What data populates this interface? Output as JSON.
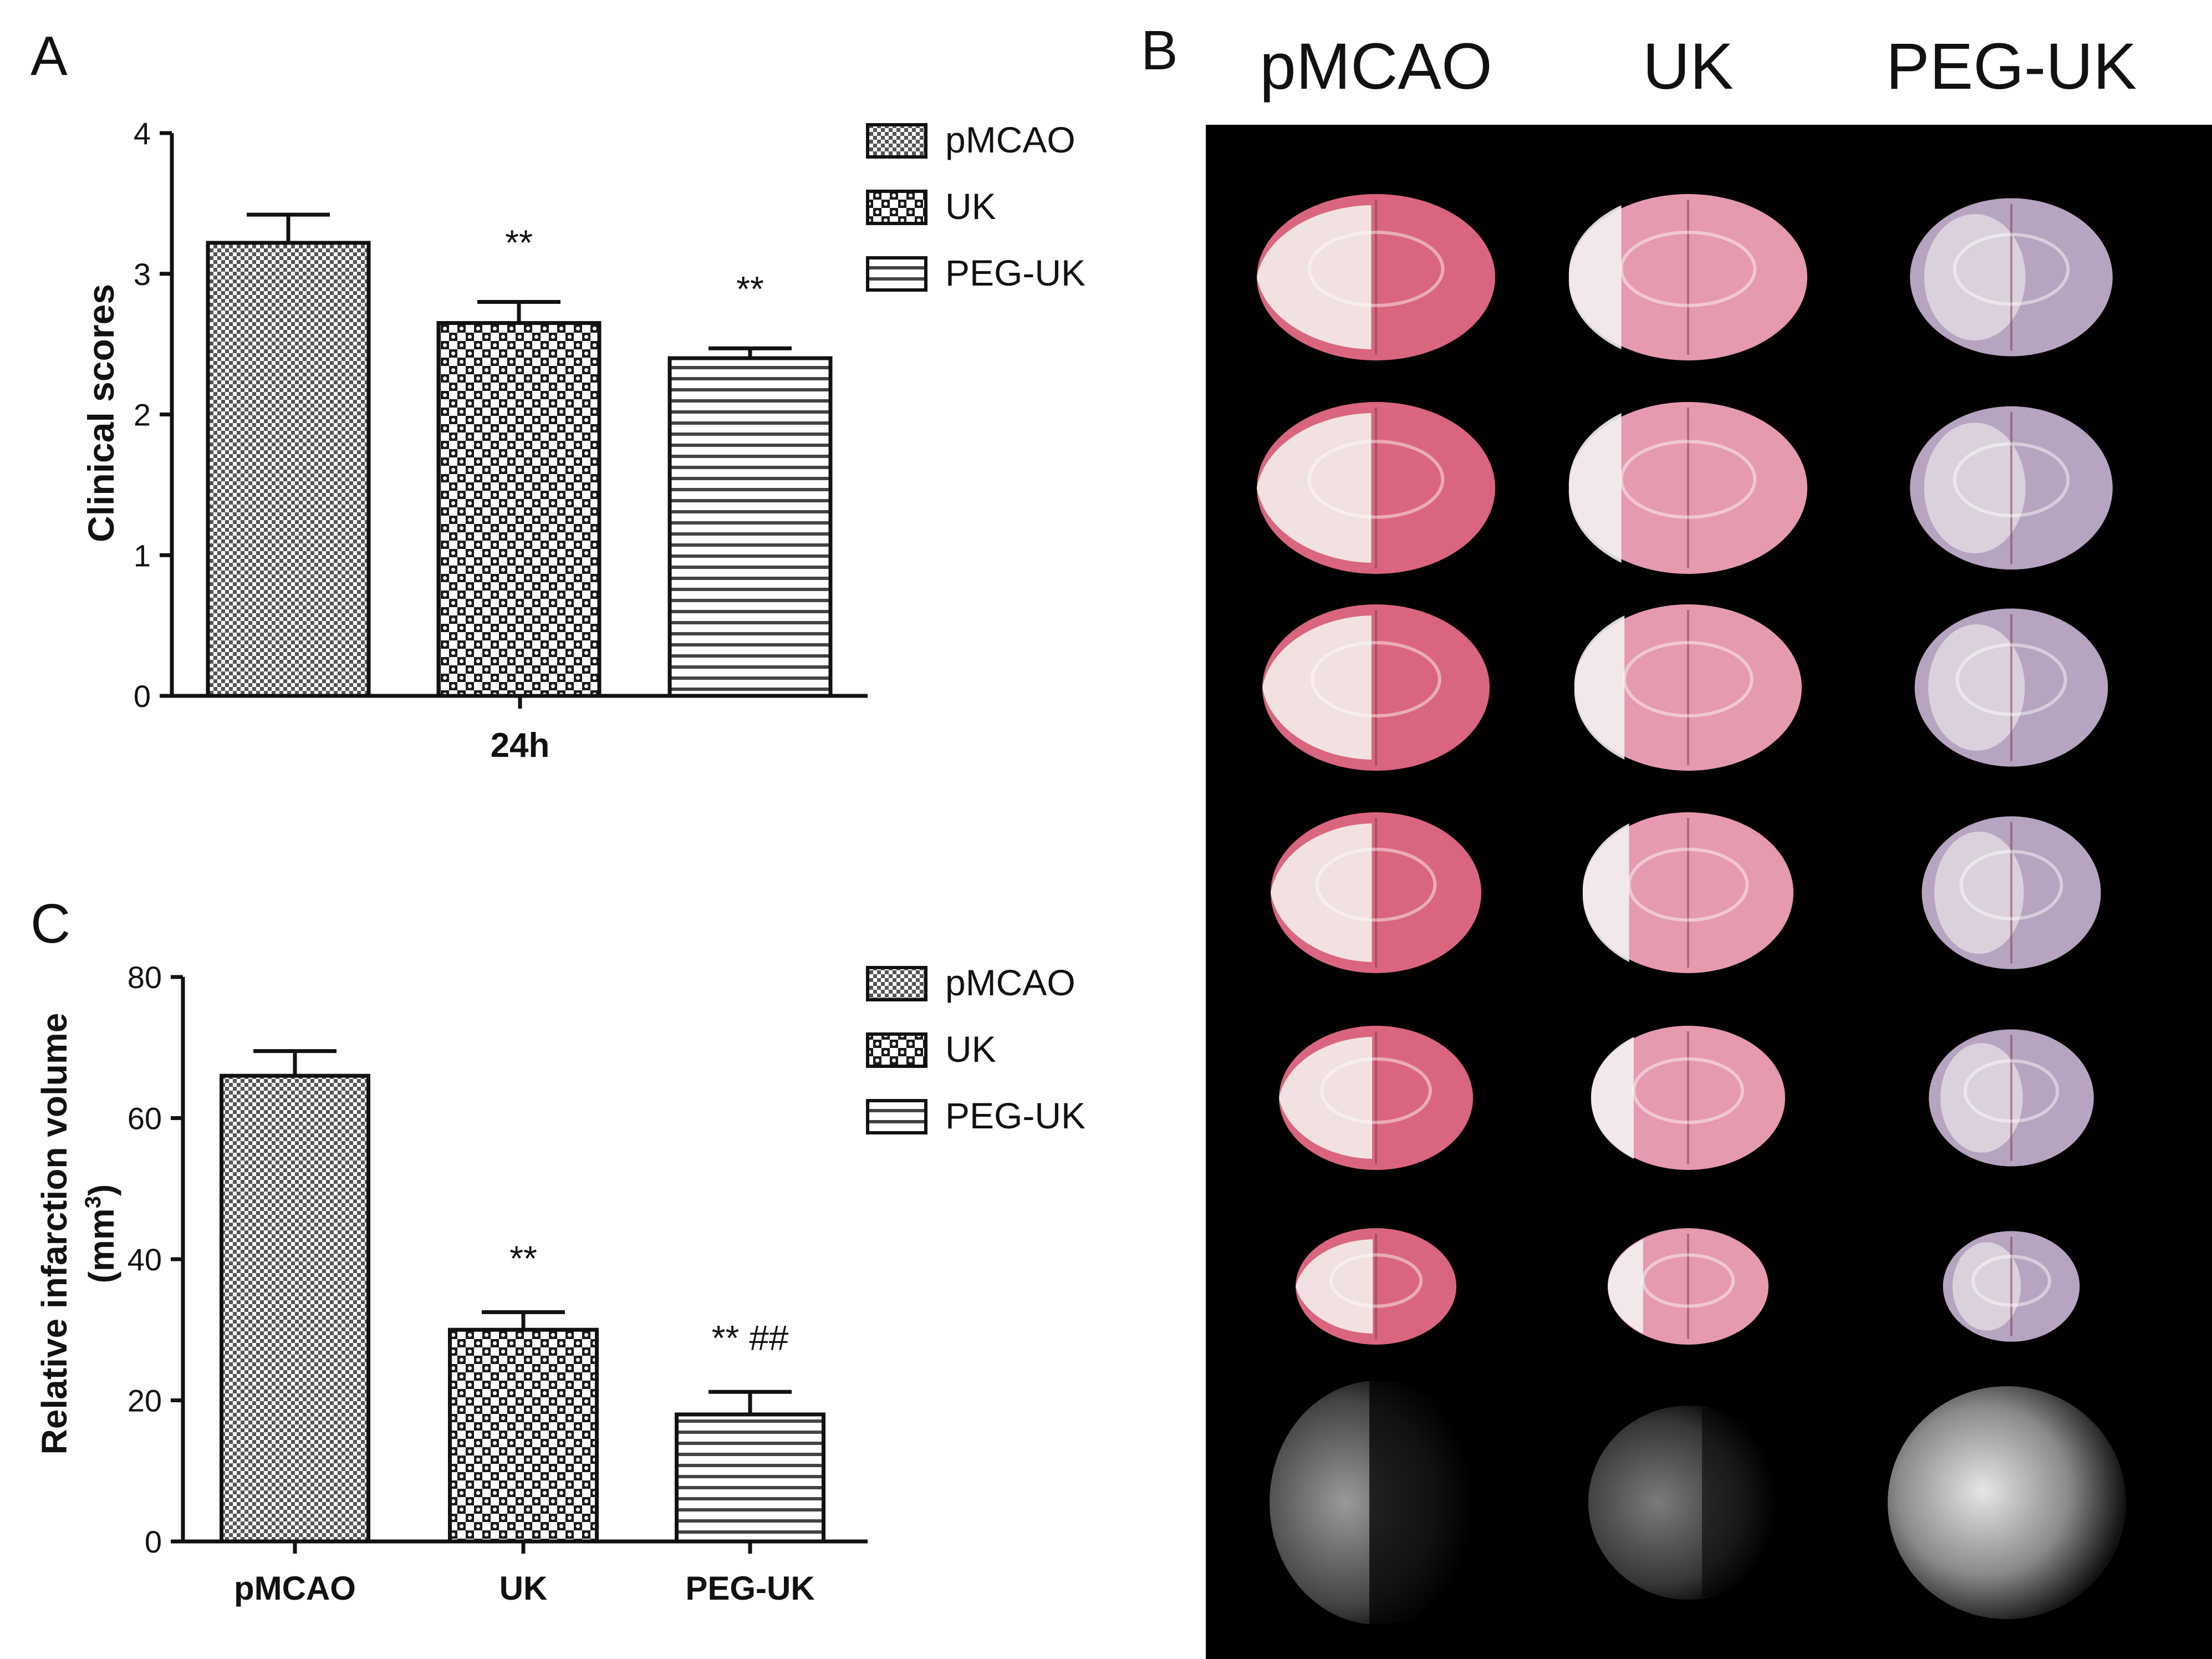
{
  "panels": {
    "A": {
      "label": "A",
      "chart_data": {
        "type": "bar",
        "categories": [
          "pMCAO",
          "UK",
          "PEG-UK"
        ],
        "values": [
          3.22,
          2.65,
          2.4
        ],
        "errors": [
          0.2,
          0.15,
          0.07
        ],
        "annotations": [
          "",
          "**",
          "**"
        ],
        "xlabel": "24h",
        "ylabel": "Clinical scores",
        "ylim": [
          0,
          4
        ],
        "yticks": [
          "0",
          "1",
          "2",
          "3",
          "4"
        ],
        "legend": [
          "pMCAO",
          "UK",
          "PEG-UK"
        ],
        "legend_position": "right",
        "grid": false
      }
    },
    "C": {
      "label": "C",
      "chart_data": {
        "type": "bar",
        "categories": [
          "pMCAO",
          "UK",
          "PEG-UK"
        ],
        "values": [
          66,
          30,
          18
        ],
        "errors": [
          3.5,
          2.5,
          3.2
        ],
        "annotations": [
          "",
          "**",
          "** ##"
        ],
        "xlabel": "",
        "ylabel": "Relative infarction volume",
        "ylabel_unit_prefix": "(mm",
        "ylabel_unit_sup": "3",
        "ylabel_unit_suffix": ")",
        "ylim": [
          0,
          80
        ],
        "yticks": [
          "0",
          "20",
          "40",
          "60",
          "80"
        ],
        "legend": [
          "pMCAO",
          "UK",
          "PEG-UK"
        ],
        "legend_position": "right",
        "grid": false
      }
    },
    "B": {
      "label": "B",
      "columns": [
        "pMCAO",
        "UK",
        "PEG-UK"
      ]
    }
  }
}
